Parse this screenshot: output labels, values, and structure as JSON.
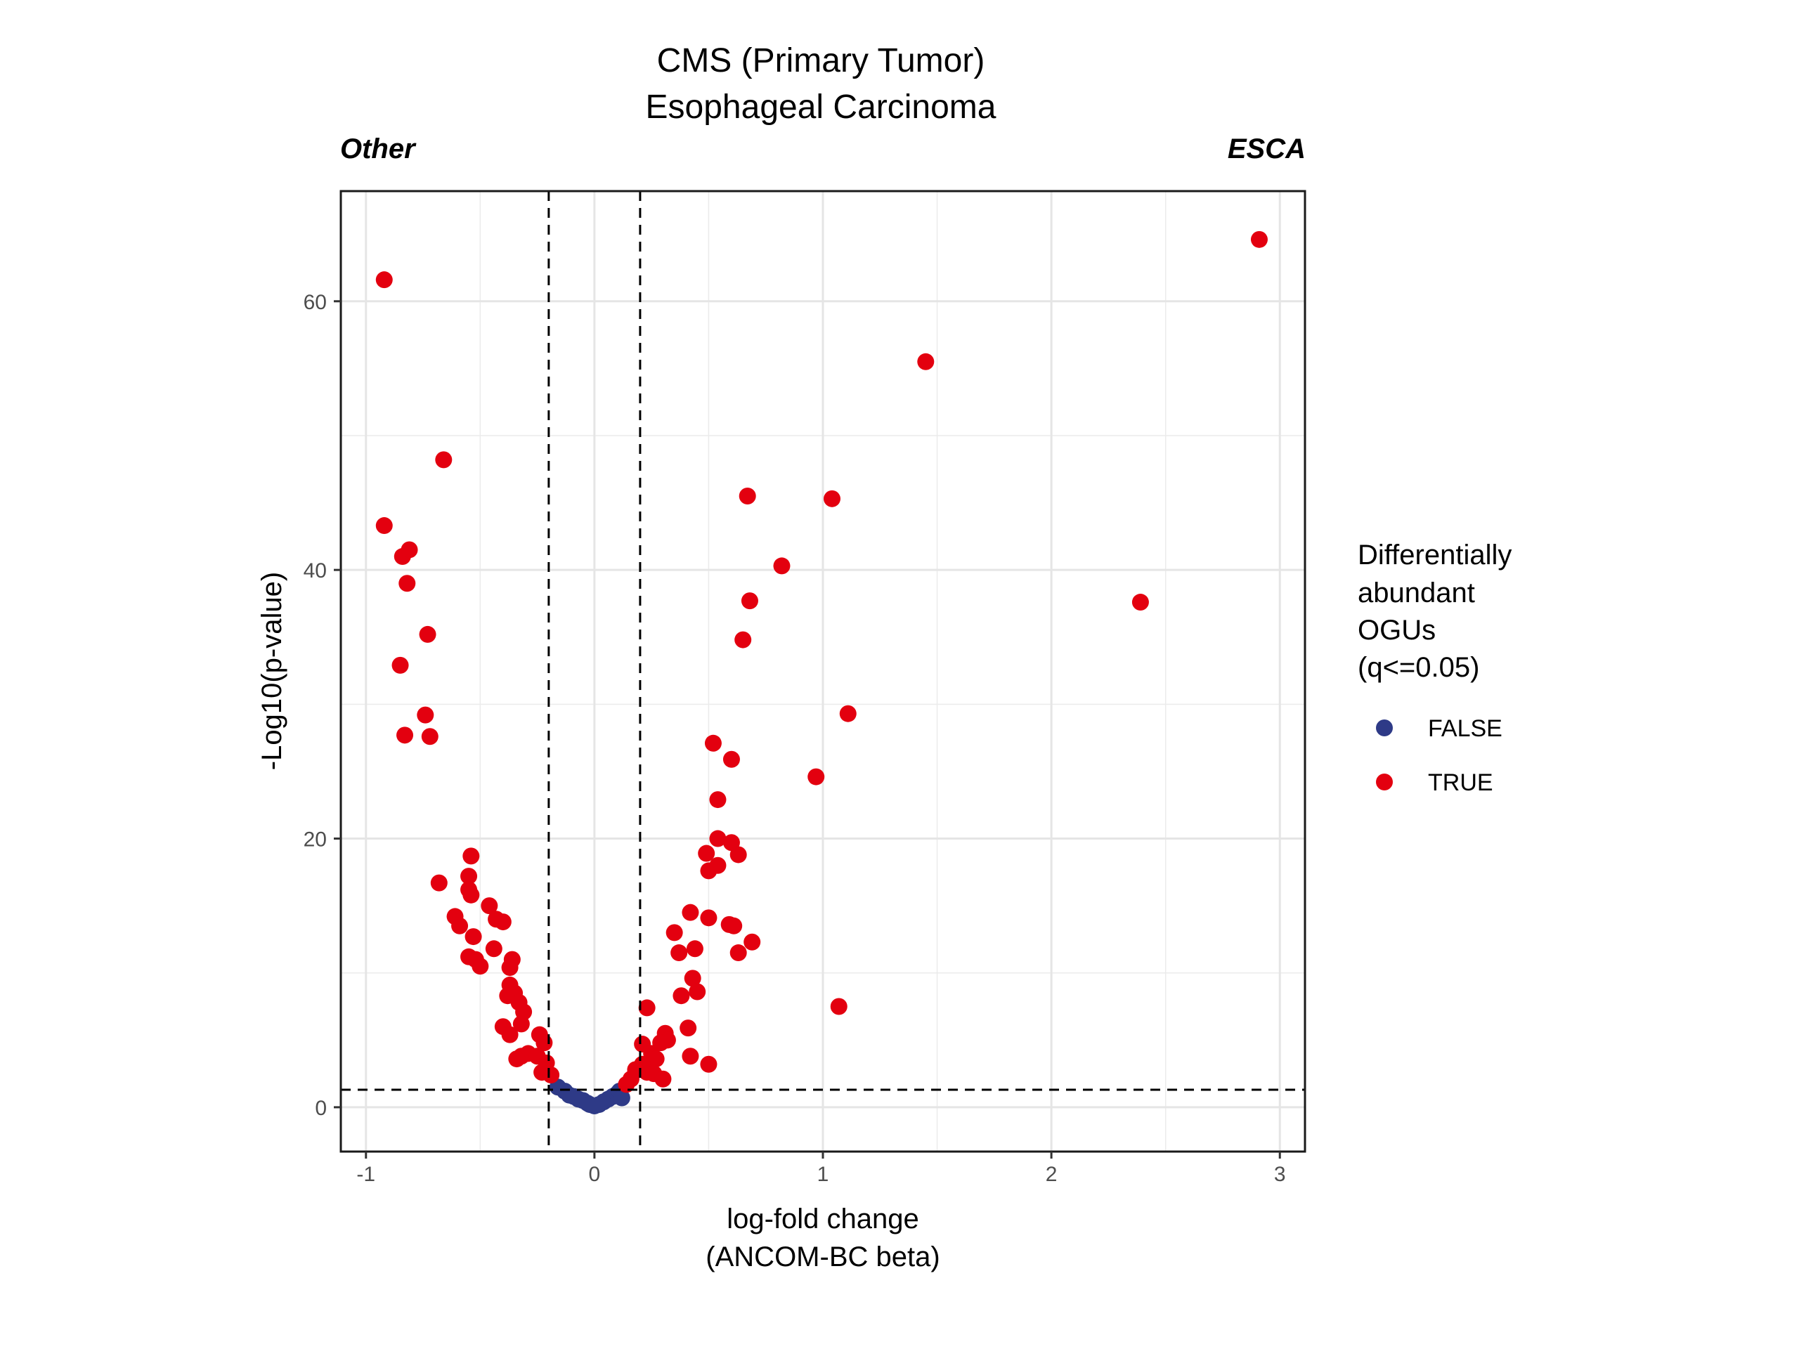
{
  "chart_data": {
    "type": "scatter",
    "title": [
      "CMS (Primary Tumor)",
      "Esophageal Carcinoma"
    ],
    "left_label": "Other",
    "right_label": "ESCA",
    "xlabel": [
      "log-fold change",
      "(ANCOM-BC beta)"
    ],
    "ylabel": "-Log10(p-value)",
    "xlim": [
      -1.11,
      3.11
    ],
    "ylim": [
      -3.3,
      68.2
    ],
    "x_ticks": [
      -1,
      0,
      1,
      2,
      3
    ],
    "x_tick_labels": [
      "-1",
      "0",
      "1",
      "2",
      "3"
    ],
    "y_ticks": [
      0,
      20,
      40,
      60
    ],
    "y_tick_labels": [
      "0",
      "20",
      "40",
      "60"
    ],
    "grid": true,
    "reference_lines": {
      "x": [
        -0.2,
        0.2
      ],
      "y": [
        1.3
      ]
    },
    "legend": {
      "title": [
        "Differentially",
        "abundant",
        "OGUs",
        "(q<=0.05)"
      ],
      "placement": "right",
      "entries": [
        {
          "label": "FALSE",
          "color": "#2E3A87"
        },
        {
          "label": "TRUE",
          "color": "#E3000F"
        }
      ]
    },
    "series": [
      {
        "name": "FALSE",
        "color": "#2E3A87",
        "points": [
          [
            -0.16,
            1.5
          ],
          [
            -0.13,
            1.2
          ],
          [
            -0.11,
            0.9
          ],
          [
            -0.09,
            0.8
          ],
          [
            -0.07,
            0.6
          ],
          [
            -0.05,
            0.5
          ],
          [
            -0.03,
            0.3
          ],
          [
            -0.02,
            0.2
          ],
          [
            0.0,
            0.1
          ],
          [
            0.02,
            0.2
          ],
          [
            0.04,
            0.4
          ],
          [
            0.06,
            0.6
          ],
          [
            0.08,
            0.8
          ],
          [
            0.1,
            1.0
          ],
          [
            0.11,
            1.2
          ],
          [
            0.12,
            0.7
          ]
        ]
      },
      {
        "name": "TRUE",
        "color": "#E3000F",
        "points": [
          [
            -0.92,
            61.6
          ],
          [
            -0.92,
            43.3
          ],
          [
            -0.84,
            41.0
          ],
          [
            -0.81,
            41.5
          ],
          [
            -0.82,
            39.0
          ],
          [
            -0.66,
            48.2
          ],
          [
            -0.73,
            35.2
          ],
          [
            -0.85,
            32.9
          ],
          [
            -0.74,
            29.2
          ],
          [
            -0.83,
            27.7
          ],
          [
            -0.72,
            27.6
          ],
          [
            -0.68,
            16.7
          ],
          [
            -0.54,
            18.7
          ],
          [
            -0.55,
            17.2
          ],
          [
            -0.55,
            16.2
          ],
          [
            -0.54,
            15.8
          ],
          [
            -0.61,
            14.2
          ],
          [
            -0.59,
            13.5
          ],
          [
            -0.46,
            15.0
          ],
          [
            -0.43,
            14.0
          ],
          [
            -0.4,
            13.8
          ],
          [
            -0.55,
            11.2
          ],
          [
            -0.52,
            11.0
          ],
          [
            -0.53,
            12.7
          ],
          [
            -0.5,
            10.5
          ],
          [
            -0.44,
            11.8
          ],
          [
            -0.36,
            11.0
          ],
          [
            -0.37,
            10.4
          ],
          [
            -0.37,
            9.1
          ],
          [
            -0.38,
            8.3
          ],
          [
            -0.35,
            8.5
          ],
          [
            -0.33,
            7.8
          ],
          [
            -0.31,
            7.1
          ],
          [
            -0.32,
            6.2
          ],
          [
            -0.4,
            6.0
          ],
          [
            -0.37,
            5.4
          ],
          [
            -0.24,
            5.4
          ],
          [
            -0.22,
            4.8
          ],
          [
            -0.29,
            4.0
          ],
          [
            -0.32,
            3.8
          ],
          [
            -0.34,
            3.6
          ],
          [
            -0.25,
            3.8
          ],
          [
            -0.21,
            3.3
          ],
          [
            -0.23,
            2.6
          ],
          [
            -0.19,
            2.4
          ],
          [
            2.91,
            64.6
          ],
          [
            1.45,
            55.5
          ],
          [
            1.04,
            45.3
          ],
          [
            0.67,
            45.5
          ],
          [
            0.82,
            40.3
          ],
          [
            2.39,
            37.6
          ],
          [
            0.68,
            37.7
          ],
          [
            0.65,
            34.8
          ],
          [
            1.11,
            29.3
          ],
          [
            0.52,
            27.1
          ],
          [
            0.6,
            25.9
          ],
          [
            0.97,
            24.6
          ],
          [
            0.54,
            22.9
          ],
          [
            0.54,
            20.0
          ],
          [
            0.6,
            19.7
          ],
          [
            0.63,
            18.8
          ],
          [
            0.49,
            18.9
          ],
          [
            0.5,
            17.6
          ],
          [
            0.54,
            18.0
          ],
          [
            0.42,
            14.5
          ],
          [
            0.5,
            14.1
          ],
          [
            0.59,
            13.6
          ],
          [
            0.61,
            13.5
          ],
          [
            0.35,
            13.0
          ],
          [
            0.37,
            11.5
          ],
          [
            0.44,
            11.8
          ],
          [
            0.63,
            11.5
          ],
          [
            0.69,
            12.3
          ],
          [
            0.43,
            9.6
          ],
          [
            0.38,
            8.3
          ],
          [
            0.45,
            8.6
          ],
          [
            1.07,
            7.5
          ],
          [
            0.23,
            7.4
          ],
          [
            0.31,
            5.5
          ],
          [
            0.32,
            5.0
          ],
          [
            0.29,
            4.8
          ],
          [
            0.41,
            5.9
          ],
          [
            0.21,
            4.7
          ],
          [
            0.25,
            4.0
          ],
          [
            0.27,
            3.6
          ],
          [
            0.42,
            3.8
          ],
          [
            0.5,
            3.2
          ],
          [
            0.21,
            3.2
          ],
          [
            0.18,
            2.8
          ],
          [
            0.23,
            2.6
          ],
          [
            0.26,
            2.5
          ],
          [
            0.3,
            2.1
          ],
          [
            0.16,
            2.1
          ],
          [
            0.14,
            1.7
          ]
        ]
      }
    ]
  }
}
